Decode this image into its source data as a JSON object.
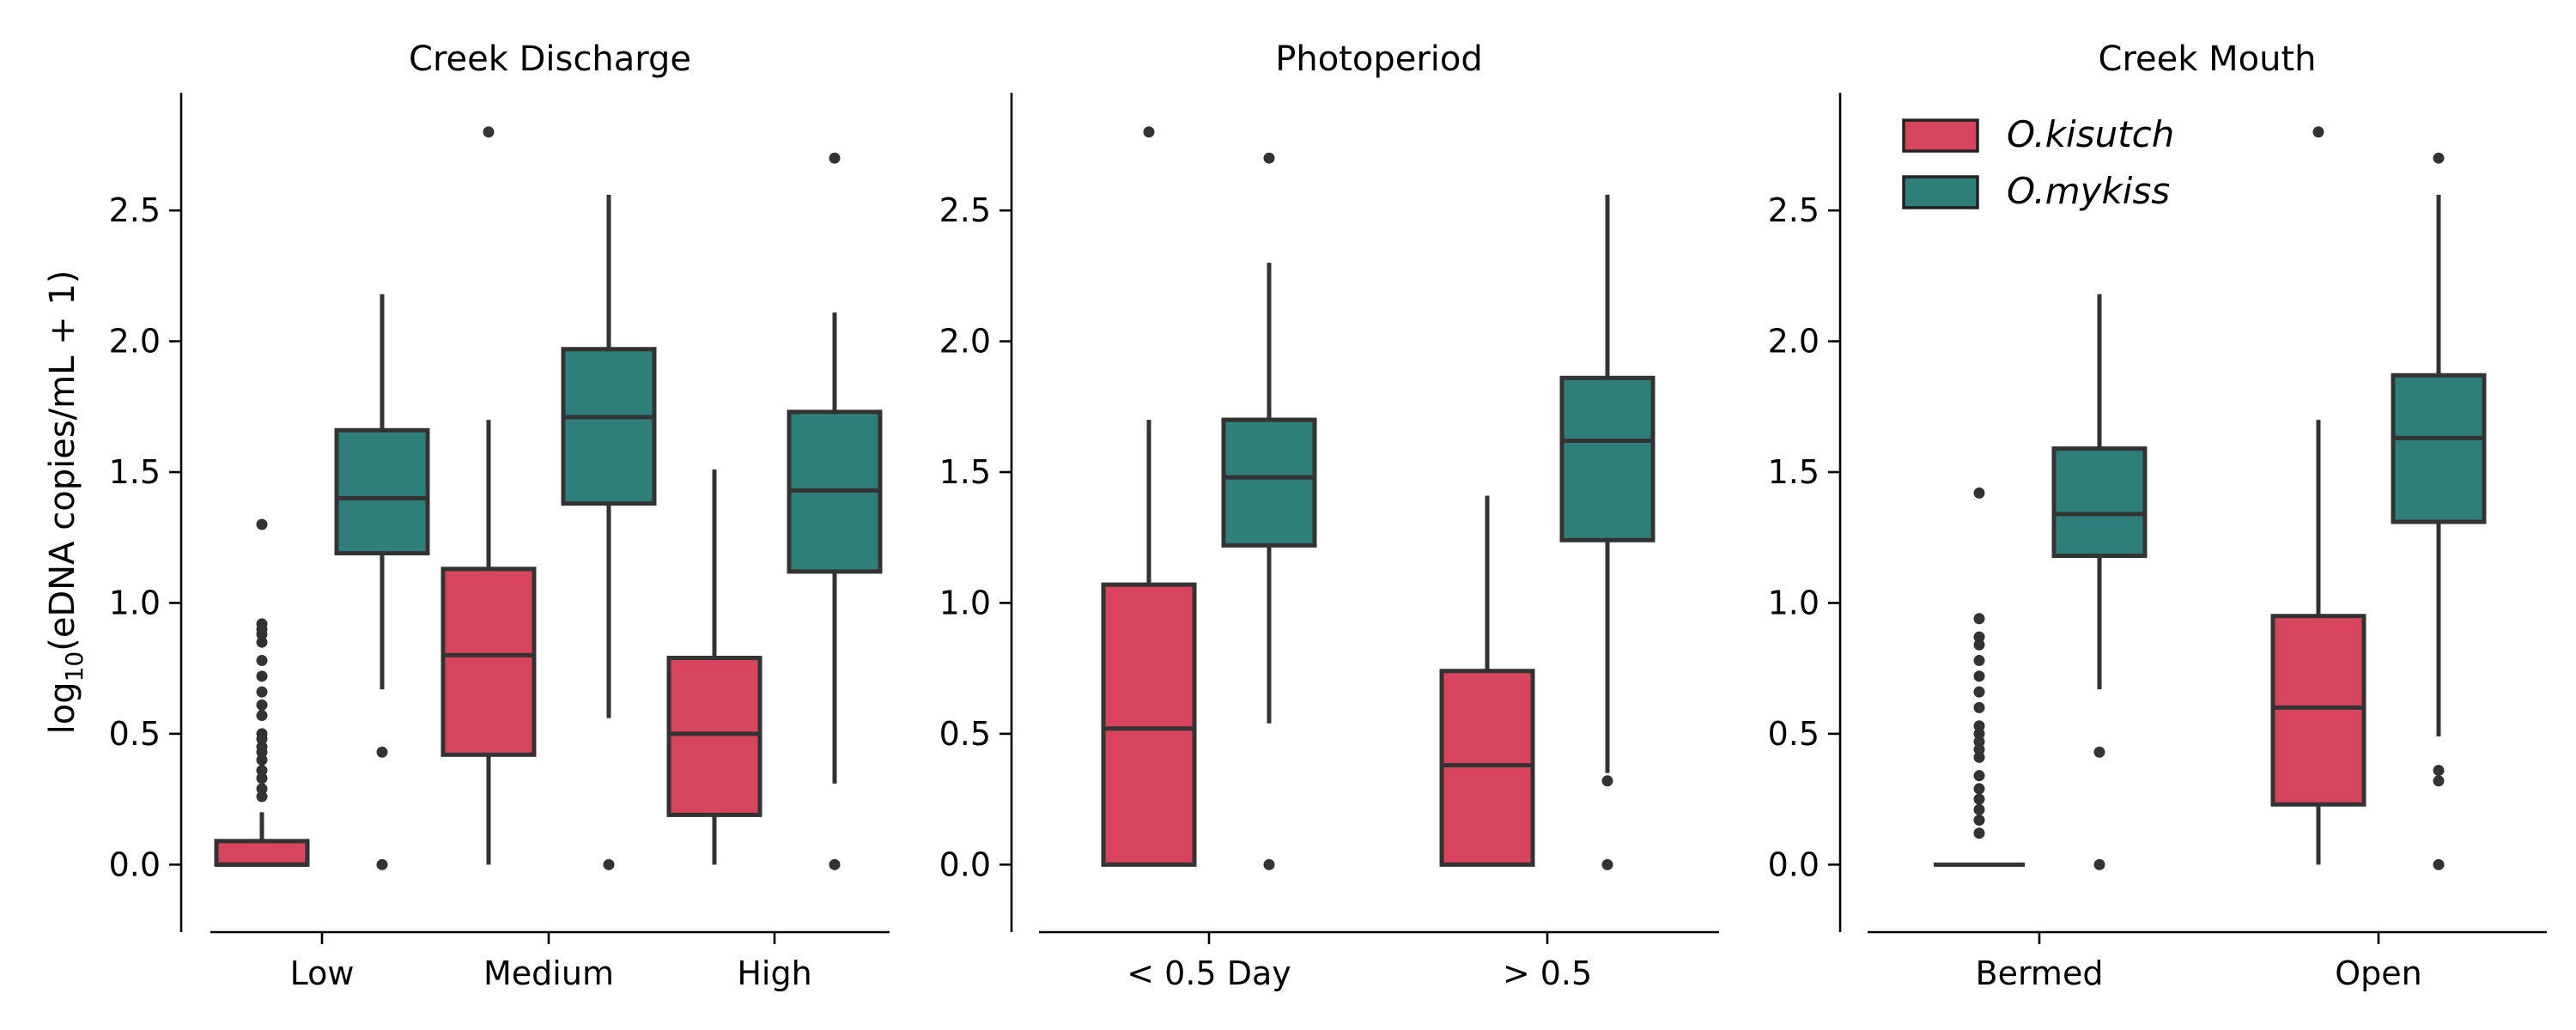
{
  "colors": {
    "O_kisutch": "#d6455d",
    "O_mykiss": "#2e7e7a",
    "line": "#333333"
  },
  "ylabel": {
    "prefix": "log",
    "sub": "10",
    "suffix": "(eDNA copies/mL + 1)"
  },
  "legend": {
    "placement": "top-left of third panel",
    "entries": [
      "O.kisutch",
      "O.mykiss"
    ]
  },
  "chart_data": [
    {
      "type": "box",
      "title": "Creek Discharge",
      "categories": [
        "Low",
        "Medium",
        "High"
      ],
      "ylim": [
        -0.14,
        2.95
      ],
      "yticks": [
        "0.0",
        "0.5",
        "1.0",
        "1.5",
        "2.0",
        "2.5"
      ],
      "series": [
        {
          "name": "O.kisutch",
          "boxes": [
            {
              "q1": 0.0,
              "median": 0.0,
              "q3": 0.09,
              "whislo": 0.0,
              "whishi": 0.2,
              "fliers": [
                0.26,
                0.29,
                0.33,
                0.36,
                0.4,
                0.43,
                0.45,
                0.48,
                0.5,
                0.57,
                0.61,
                0.66,
                0.72,
                0.78,
                0.85,
                0.88,
                0.9,
                0.92,
                1.3
              ]
            },
            {
              "q1": 0.42,
              "median": 0.8,
              "q3": 1.13,
              "whislo": 0.0,
              "whishi": 1.7,
              "fliers": [
                2.8
              ]
            },
            {
              "q1": 0.19,
              "median": 0.5,
              "q3": 0.79,
              "whislo": 0.0,
              "whishi": 1.51,
              "fliers": []
            }
          ]
        },
        {
          "name": "O.mykiss",
          "boxes": [
            {
              "q1": 1.19,
              "median": 1.4,
              "q3": 1.66,
              "whislo": 0.67,
              "whishi": 2.18,
              "fliers": [
                0.43,
                0.0
              ]
            },
            {
              "q1": 1.38,
              "median": 1.71,
              "q3": 1.97,
              "whislo": 0.56,
              "whishi": 2.56,
              "fliers": [
                0.0
              ]
            },
            {
              "q1": 1.12,
              "median": 1.43,
              "q3": 1.73,
              "whislo": 0.31,
              "whishi": 2.11,
              "fliers": [
                2.7,
                0.0
              ]
            }
          ]
        }
      ]
    },
    {
      "type": "box",
      "title": "Photoperiod",
      "categories": [
        "< 0.5 Day",
        "> 0.5"
      ],
      "ylim": [
        -0.14,
        2.95
      ],
      "yticks": [
        "0.0",
        "0.5",
        "1.0",
        "1.5",
        "2.0",
        "2.5"
      ],
      "series": [
        {
          "name": "O.kisutch",
          "boxes": [
            {
              "q1": 0.0,
              "median": 0.52,
              "q3": 1.07,
              "whislo": 0.0,
              "whishi": 1.7,
              "fliers": [
                2.8
              ]
            },
            {
              "q1": 0.0,
              "median": 0.38,
              "q3": 0.74,
              "whislo": 0.0,
              "whishi": 1.41,
              "fliers": []
            }
          ]
        },
        {
          "name": "O.mykiss",
          "boxes": [
            {
              "q1": 1.22,
              "median": 1.48,
              "q3": 1.7,
              "whislo": 0.54,
              "whishi": 2.3,
              "fliers": [
                2.7,
                0.0
              ]
            },
            {
              "q1": 1.24,
              "median": 1.62,
              "q3": 1.86,
              "whislo": 0.35,
              "whishi": 2.56,
              "fliers": [
                0.32,
                0.0
              ]
            }
          ]
        }
      ]
    },
    {
      "type": "box",
      "title": "Creek Mouth",
      "categories": [
        "Bermed",
        "Open"
      ],
      "ylim": [
        -0.14,
        2.95
      ],
      "yticks": [
        "0.0",
        "0.5",
        "1.0",
        "1.5",
        "2.0",
        "2.5"
      ],
      "series": [
        {
          "name": "O.kisutch",
          "boxes": [
            {
              "q1": 0.0,
              "median": 0.0,
              "q3": 0.0,
              "whislo": 0.0,
              "whishi": 0.0,
              "fliers": [
                0.12,
                0.17,
                0.21,
                0.25,
                0.29,
                0.34,
                0.41,
                0.44,
                0.47,
                0.5,
                0.53,
                0.6,
                0.66,
                0.72,
                0.78,
                0.84,
                0.87,
                0.94,
                1.42
              ]
            },
            {
              "q1": 0.23,
              "median": 0.6,
              "q3": 0.95,
              "whislo": 0.0,
              "whishi": 1.7,
              "fliers": [
                2.8
              ]
            }
          ]
        },
        {
          "name": "O.mykiss",
          "boxes": [
            {
              "q1": 1.18,
              "median": 1.34,
              "q3": 1.59,
              "whislo": 0.67,
              "whishi": 2.18,
              "fliers": [
                0.43,
                0.0
              ]
            },
            {
              "q1": 1.31,
              "median": 1.63,
              "q3": 1.87,
              "whislo": 0.49,
              "whishi": 2.56,
              "fliers": [
                2.7,
                0.36,
                0.32,
                0.0
              ]
            }
          ]
        }
      ]
    }
  ]
}
